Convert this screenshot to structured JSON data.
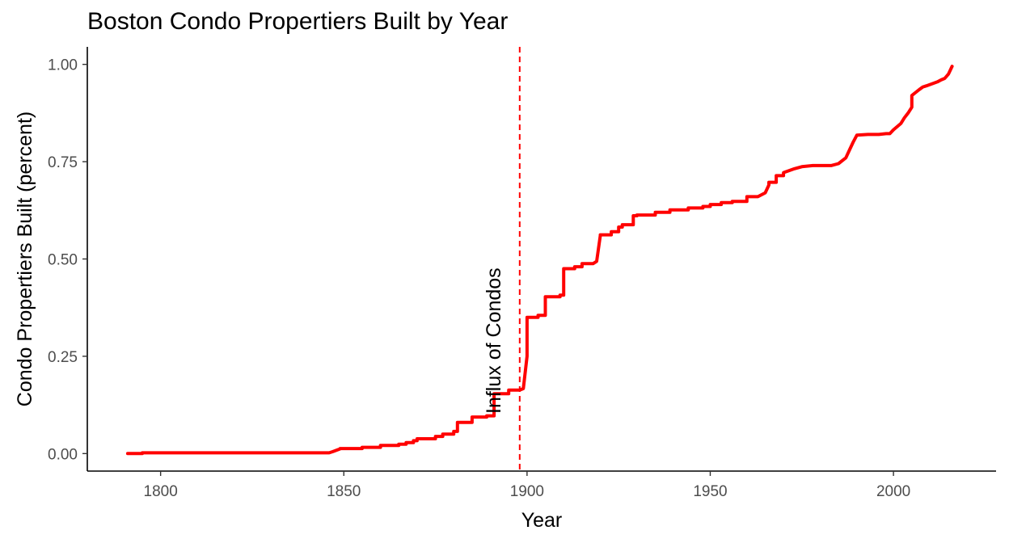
{
  "chart_data": {
    "type": "line",
    "title": "Boston Condo Propertiers Built by Year",
    "xlabel": "Year",
    "ylabel": "Condo Propertiers Built (percent)",
    "xlim": [
      1780,
      2028
    ],
    "ylim": [
      -0.045,
      1.045
    ],
    "x_ticks": [
      1800,
      1850,
      1900,
      1950,
      2000
    ],
    "y_ticks": [
      0.0,
      0.25,
      0.5,
      0.75,
      1.0
    ],
    "y_tick_labels": [
      "0.00",
      "0.25",
      "0.50",
      "0.75",
      "1.00"
    ],
    "grid": false,
    "legend": "none",
    "line_color": "#ff0000",
    "annotation": {
      "text": "Influx of Condos",
      "x": 1898,
      "y": 0.29,
      "vline_x": 1898,
      "vline_color": "#ff0000",
      "vline_style": "dashed"
    },
    "series": [
      {
        "x": [
          1791,
          1795,
          1795,
          1846,
          1847,
          1849,
          1849,
          1855,
          1855,
          1860,
          1860,
          1865,
          1865,
          1867,
          1867,
          1869,
          1869,
          1870,
          1870,
          1875,
          1875,
          1877,
          1877,
          1880,
          1880,
          1881,
          1881,
          1885,
          1885,
          1889,
          1889,
          1890,
          1890,
          1891,
          1891,
          1895,
          1895,
          1898,
          1899,
          1900,
          1900,
          1903,
          1903,
          1905,
          1905,
          1909,
          1909,
          1910,
          1910,
          1913,
          1913,
          1915,
          1915,
          1918,
          1919,
          1920,
          1920,
          1923,
          1923,
          1925,
          1925,
          1926,
          1926,
          1929,
          1929,
          1930,
          1930,
          1935,
          1935,
          1939,
          1939,
          1944,
          1944,
          1948,
          1948,
          1950,
          1950,
          1953,
          1953,
          1956,
          1956,
          1960,
          1960,
          1963,
          1965,
          1966,
          1966,
          1968,
          1968,
          1970,
          1970,
          1973,
          1975,
          1978,
          1981,
          1983,
          1985,
          1987,
          1988,
          1989,
          1990,
          1993,
          1996,
          1998,
          1999,
          2000,
          2002,
          2003,
          2004,
          2005,
          2005,
          2007,
          2008,
          2009,
          2012,
          2013,
          2014,
          2015,
          2016
        ],
        "values": [
          0.0,
          0.0,
          0.002,
          0.002,
          0.005,
          0.012,
          0.013,
          0.013,
          0.016,
          0.016,
          0.021,
          0.021,
          0.024,
          0.024,
          0.028,
          0.028,
          0.033,
          0.033,
          0.038,
          0.038,
          0.044,
          0.044,
          0.05,
          0.05,
          0.057,
          0.057,
          0.08,
          0.08,
          0.094,
          0.094,
          0.097,
          0.097,
          0.097,
          0.097,
          0.154,
          0.154,
          0.163,
          0.163,
          0.167,
          0.25,
          0.35,
          0.35,
          0.355,
          0.355,
          0.403,
          0.403,
          0.407,
          0.407,
          0.475,
          0.475,
          0.48,
          0.48,
          0.488,
          0.488,
          0.494,
          0.56,
          0.562,
          0.562,
          0.57,
          0.57,
          0.582,
          0.582,
          0.588,
          0.588,
          0.611,
          0.611,
          0.613,
          0.613,
          0.62,
          0.62,
          0.626,
          0.626,
          0.631,
          0.631,
          0.635,
          0.635,
          0.64,
          0.64,
          0.645,
          0.645,
          0.648,
          0.648,
          0.66,
          0.66,
          0.67,
          0.69,
          0.697,
          0.697,
          0.714,
          0.714,
          0.722,
          0.732,
          0.737,
          0.74,
          0.74,
          0.74,
          0.745,
          0.76,
          0.78,
          0.8,
          0.818,
          0.82,
          0.82,
          0.822,
          0.822,
          0.832,
          0.848,
          0.863,
          0.875,
          0.89,
          0.92,
          0.935,
          0.942,
          0.945,
          0.955,
          0.96,
          0.964,
          0.975,
          0.995
        ]
      }
    ]
  }
}
